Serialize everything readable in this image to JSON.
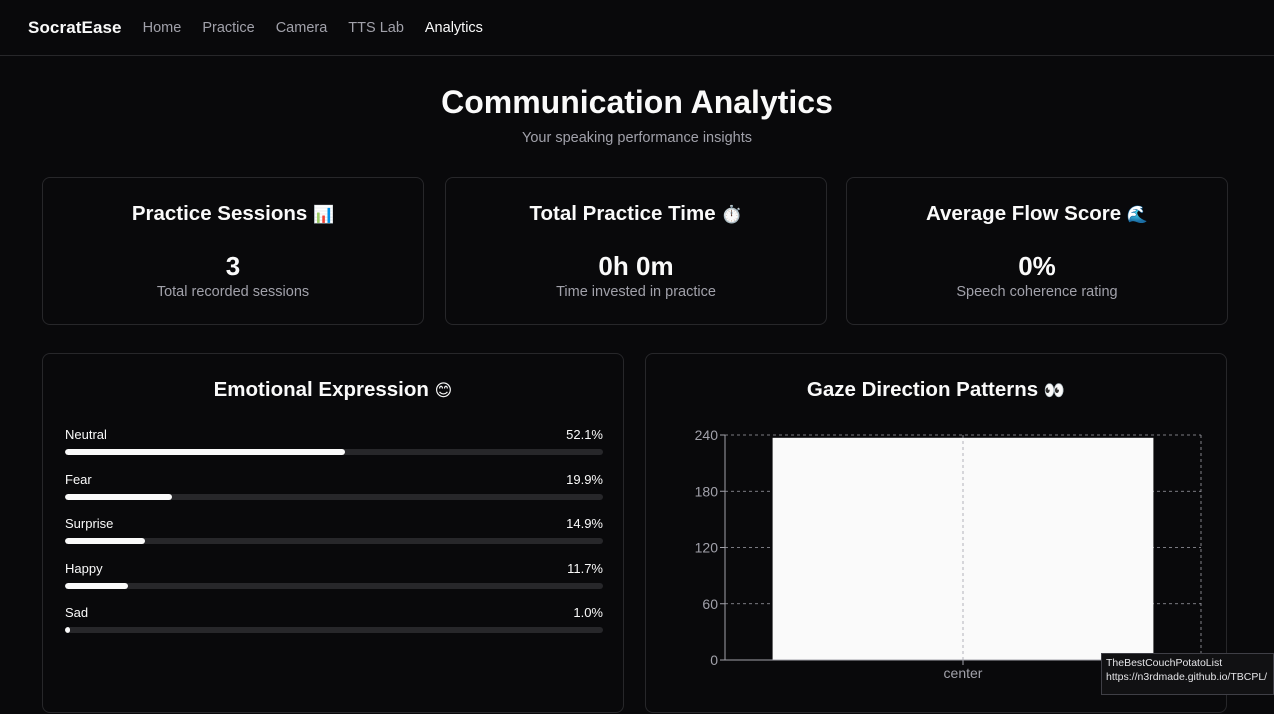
{
  "app": {
    "brand": "SocratEase",
    "nav": [
      {
        "label": "Home",
        "active": false
      },
      {
        "label": "Practice",
        "active": false
      },
      {
        "label": "Camera",
        "active": false
      },
      {
        "label": "TTS Lab",
        "active": false
      },
      {
        "label": "Analytics",
        "active": true
      }
    ]
  },
  "header": {
    "title": "Communication Analytics",
    "subtitle": "Your speaking performance insights"
  },
  "stats": [
    {
      "title": "Practice Sessions",
      "emoji": "📊",
      "icon": "bar-chart-icon",
      "value": "3",
      "description": "Total recorded sessions"
    },
    {
      "title": "Total Practice Time",
      "emoji": "⏱️",
      "icon": "stopwatch-icon",
      "value": "0h 0m",
      "description": "Time invested in practice"
    },
    {
      "title": "Average Flow Score",
      "emoji": "🌊",
      "icon": "wave-icon",
      "value": "0%",
      "description": "Speech coherence rating"
    }
  ],
  "emotions": {
    "title": "Emotional Expression",
    "emoji": "😊",
    "items": [
      {
        "label": "Neutral",
        "value": "52.1%",
        "fraction": 0.521
      },
      {
        "label": "Fear",
        "value": "19.9%",
        "fraction": 0.199
      },
      {
        "label": "Surprise",
        "value": "14.9%",
        "fraction": 0.149
      },
      {
        "label": "Happy",
        "value": "11.7%",
        "fraction": 0.117
      },
      {
        "label": "Sad",
        "value": "1.0%",
        "fraction": 0.01
      }
    ]
  },
  "gaze": {
    "title": "Gaze Direction Patterns",
    "emoji": "👀"
  },
  "chart_data": {
    "type": "bar",
    "categories": [
      "center"
    ],
    "values": [
      237
    ],
    "ylim": [
      0,
      240
    ],
    "yticks": [
      "0",
      "60",
      "120",
      "180",
      "240"
    ],
    "grid": true,
    "bar_color": "#fafafa"
  },
  "watermark": {
    "line1": "TheBestCouchPotatoList",
    "line2": "https://n3rdmade.github.io/TBCPL/"
  }
}
